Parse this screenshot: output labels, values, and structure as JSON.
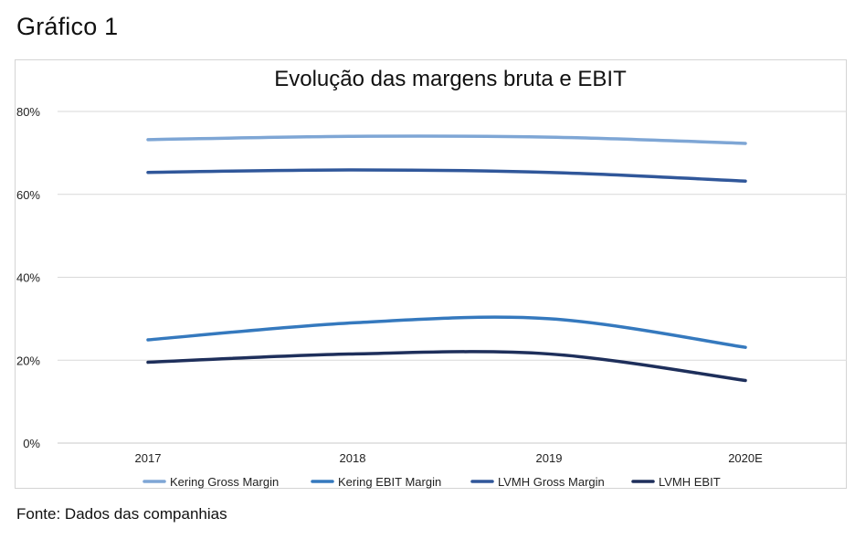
{
  "page": {
    "heading": "Gráfico 1",
    "source": "Fonte: Dados das companhias"
  },
  "chart_data": {
    "type": "line",
    "title": "Evolução das margens bruta e EBIT",
    "xlabel": "",
    "ylabel": "",
    "categories": [
      "2017",
      "2018",
      "2019",
      "2020E"
    ],
    "y_ticks": [
      "0%",
      "20%",
      "40%",
      "60%",
      "80%"
    ],
    "ylim": [
      0,
      80
    ],
    "grid": true,
    "legend_position": "bottom",
    "smooth": true,
    "series": [
      {
        "name": "Kering Gross Margin",
        "color": "#7ea6d5",
        "values": [
          73.2,
          74.0,
          73.8,
          72.3
        ]
      },
      {
        "name": "Kering EBIT Margin",
        "color": "#3579be",
        "values": [
          24.9,
          29.0,
          30.0,
          23.1
        ]
      },
      {
        "name": "LVMH Gross Margin",
        "color": "#30579a",
        "values": [
          65.3,
          65.9,
          65.3,
          63.2
        ]
      },
      {
        "name": "LVMH EBIT",
        "color": "#1e2f5b",
        "values": [
          19.5,
          21.5,
          21.5,
          15.1
        ]
      }
    ]
  }
}
